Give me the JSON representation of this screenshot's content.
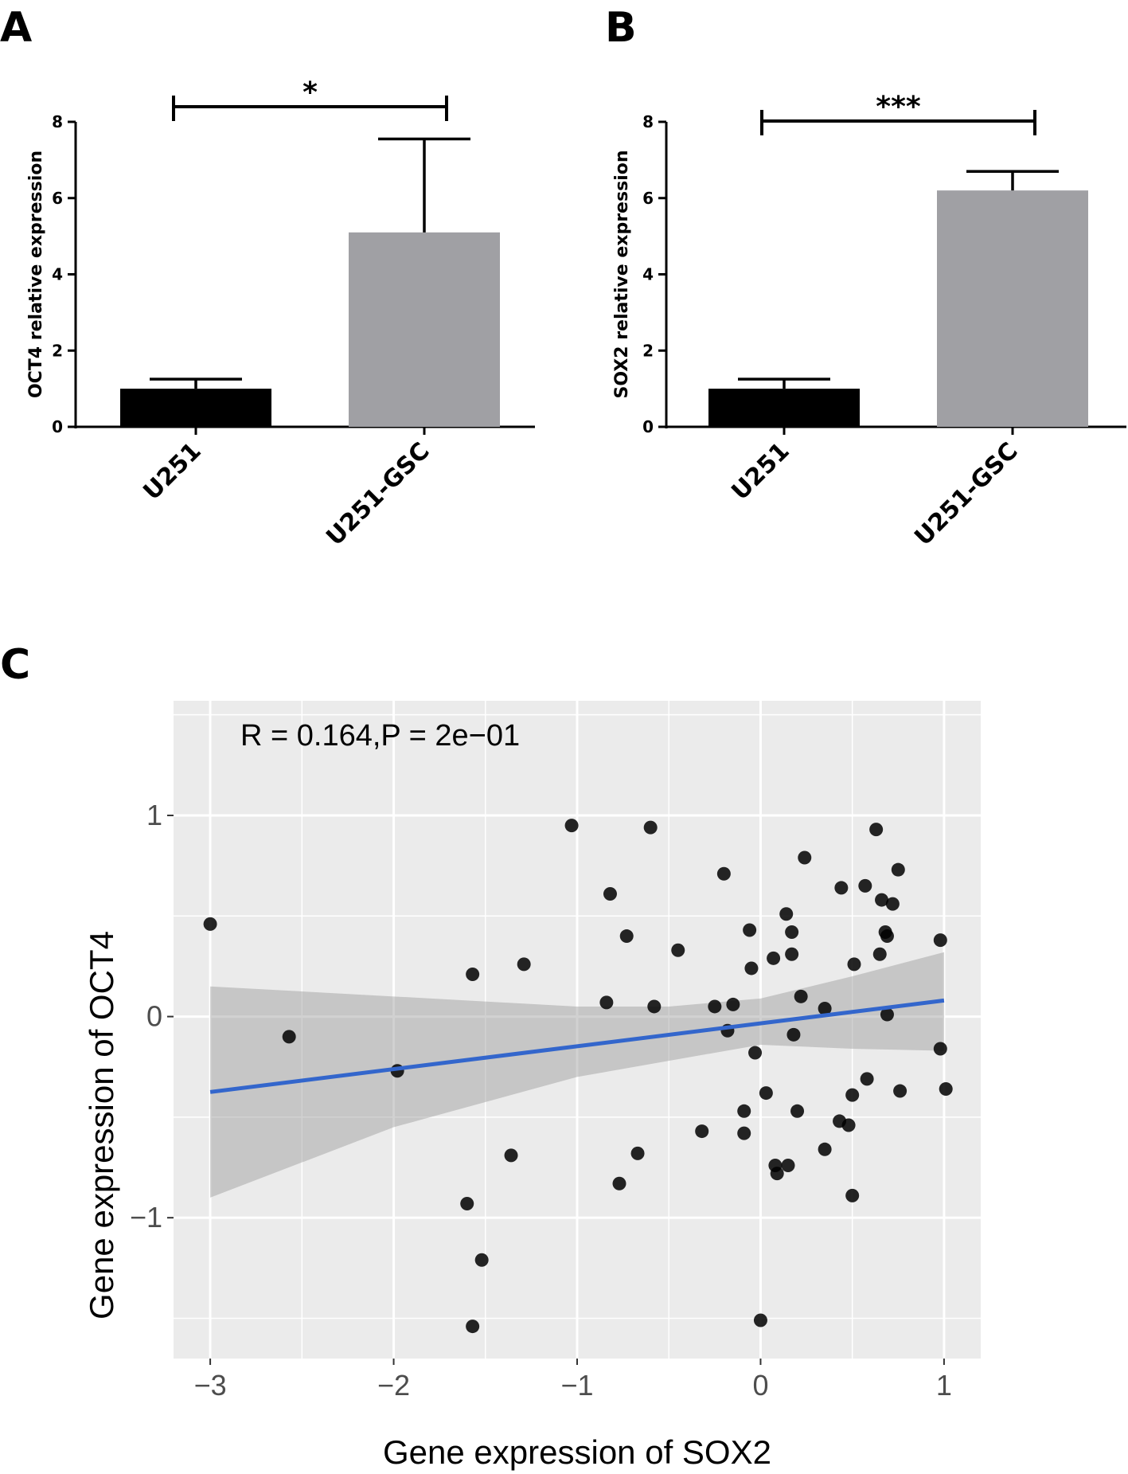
{
  "panels": {
    "a": "A",
    "b": "B",
    "c": "C"
  },
  "chart_data": [
    {
      "type": "bar",
      "panel": "A",
      "categories": [
        "U251",
        "U251-GSC"
      ],
      "values": [
        1.0,
        5.1
      ],
      "errors": [
        0.25,
        2.45
      ],
      "bar_colors": [
        "#000000",
        "#a0a0a4"
      ],
      "ylabel": "OCT4 relative expression",
      "xlabel": "",
      "ylim": [
        0,
        8
      ],
      "yticks": [
        0,
        2,
        4,
        6,
        8
      ],
      "significance": "*"
    },
    {
      "type": "bar",
      "panel": "B",
      "categories": [
        "U251",
        "U251-GSC"
      ],
      "values": [
        1.0,
        6.2
      ],
      "errors": [
        0.25,
        0.5
      ],
      "bar_colors": [
        "#000000",
        "#a0a0a4"
      ],
      "ylabel": "SOX2 relative expression",
      "xlabel": "",
      "ylim": [
        0,
        8
      ],
      "yticks": [
        0,
        2,
        4,
        6,
        8
      ],
      "significance": "***"
    },
    {
      "type": "scatter",
      "panel": "C",
      "xlabel": "Gene expression of SOX2",
      "ylabel": "Gene expression of OCT4",
      "annotation": "R = 0.164,P = 2e−01",
      "xlim": [
        -3.2,
        1.2
      ],
      "ylim": [
        -1.7,
        1.57
      ],
      "xticks": [
        -3,
        -2,
        -1,
        0,
        1
      ],
      "xtick_labels": [
        "−3",
        "−2",
        "−1",
        "0",
        "1"
      ],
      "yticks": [
        -1,
        0,
        1
      ],
      "ytick_labels": [
        "−1",
        "0",
        "1"
      ],
      "grid": true,
      "panel_background": "#ebebeb",
      "point_color": "#000000",
      "regression": {
        "x": [
          -3.0,
          1.0
        ],
        "y": [
          -0.375,
          0.08
        ],
        "color": "#3366cc",
        "band": [
          {
            "x": -3.0,
            "lo": -0.9,
            "hi": 0.15
          },
          {
            "x": -2.0,
            "lo": -0.55,
            "hi": 0.1
          },
          {
            "x": -1.0,
            "lo": -0.3,
            "hi": 0.05
          },
          {
            "x": -0.5,
            "lo": -0.22,
            "hi": 0.05
          },
          {
            "x": 0.0,
            "lo": -0.14,
            "hi": 0.09
          },
          {
            "x": 0.5,
            "lo": -0.16,
            "hi": 0.2
          },
          {
            "x": 1.0,
            "lo": -0.17,
            "hi": 0.32
          }
        ]
      },
      "points": [
        {
          "x": -3.0,
          "y": 0.46
        },
        {
          "x": -2.57,
          "y": -0.1
        },
        {
          "x": -1.98,
          "y": -0.27
        },
        {
          "x": -1.6,
          "y": -0.93
        },
        {
          "x": -1.57,
          "y": 0.21
        },
        {
          "x": -1.57,
          "y": -1.54
        },
        {
          "x": -1.52,
          "y": -1.21
        },
        {
          "x": -1.36,
          "y": -0.69
        },
        {
          "x": -1.29,
          "y": 0.26
        },
        {
          "x": -1.03,
          "y": 0.95
        },
        {
          "x": -0.84,
          "y": 0.07
        },
        {
          "x": -0.82,
          "y": 0.61
        },
        {
          "x": -0.77,
          "y": -0.83
        },
        {
          "x": -0.73,
          "y": 0.4
        },
        {
          "x": -0.6,
          "y": 0.94
        },
        {
          "x": -0.58,
          "y": 0.05
        },
        {
          "x": -0.67,
          "y": -0.68
        },
        {
          "x": -0.45,
          "y": 0.33
        },
        {
          "x": -0.32,
          "y": -0.57
        },
        {
          "x": -0.25,
          "y": 0.05
        },
        {
          "x": -0.2,
          "y": 0.71
        },
        {
          "x": -0.18,
          "y": -0.07
        },
        {
          "x": -0.15,
          "y": 0.06
        },
        {
          "x": -0.09,
          "y": -0.47
        },
        {
          "x": -0.09,
          "y": -0.58
        },
        {
          "x": -0.06,
          "y": 0.43
        },
        {
          "x": -0.05,
          "y": 0.24
        },
        {
          "x": -0.03,
          "y": -0.18
        },
        {
          "x": 0.03,
          "y": -0.38
        },
        {
          "x": 0.07,
          "y": 0.29
        },
        {
          "x": 0.08,
          "y": -0.74
        },
        {
          "x": 0.09,
          "y": -0.78
        },
        {
          "x": 0.14,
          "y": 0.51
        },
        {
          "x": 0.15,
          "y": -0.74
        },
        {
          "x": 0.17,
          "y": 0.42
        },
        {
          "x": 0.18,
          "y": -0.09
        },
        {
          "x": 0.17,
          "y": 0.31
        },
        {
          "x": 0.2,
          "y": -0.47
        },
        {
          "x": 0.22,
          "y": 0.1
        },
        {
          "x": 0.24,
          "y": 0.79
        },
        {
          "x": 0.35,
          "y": 0.04
        },
        {
          "x": 0.35,
          "y": -0.66
        },
        {
          "x": 0.43,
          "y": -0.52
        },
        {
          "x": 0.44,
          "y": 0.64
        },
        {
          "x": 0.48,
          "y": -0.54
        },
        {
          "x": 0.5,
          "y": -0.39
        },
        {
          "x": 0.5,
          "y": -0.89
        },
        {
          "x": 0.51,
          "y": 0.26
        },
        {
          "x": 0.57,
          "y": 0.65
        },
        {
          "x": 0.58,
          "y": -0.31
        },
        {
          "x": 0.63,
          "y": 0.93
        },
        {
          "x": 0.65,
          "y": 0.31
        },
        {
          "x": 0.66,
          "y": 0.58
        },
        {
          "x": 0.68,
          "y": 0.42
        },
        {
          "x": 0.69,
          "y": 0.4
        },
        {
          "x": 0.69,
          "y": 0.01
        },
        {
          "x": 0.72,
          "y": 0.56
        },
        {
          "x": 0.75,
          "y": 0.73
        },
        {
          "x": 0.76,
          "y": -0.37
        },
        {
          "x": 0.98,
          "y": 0.38
        },
        {
          "x": 0.98,
          "y": -0.16
        },
        {
          "x": 1.01,
          "y": -0.36
        },
        {
          "x": 0.0,
          "y": -1.51
        }
      ]
    }
  ]
}
